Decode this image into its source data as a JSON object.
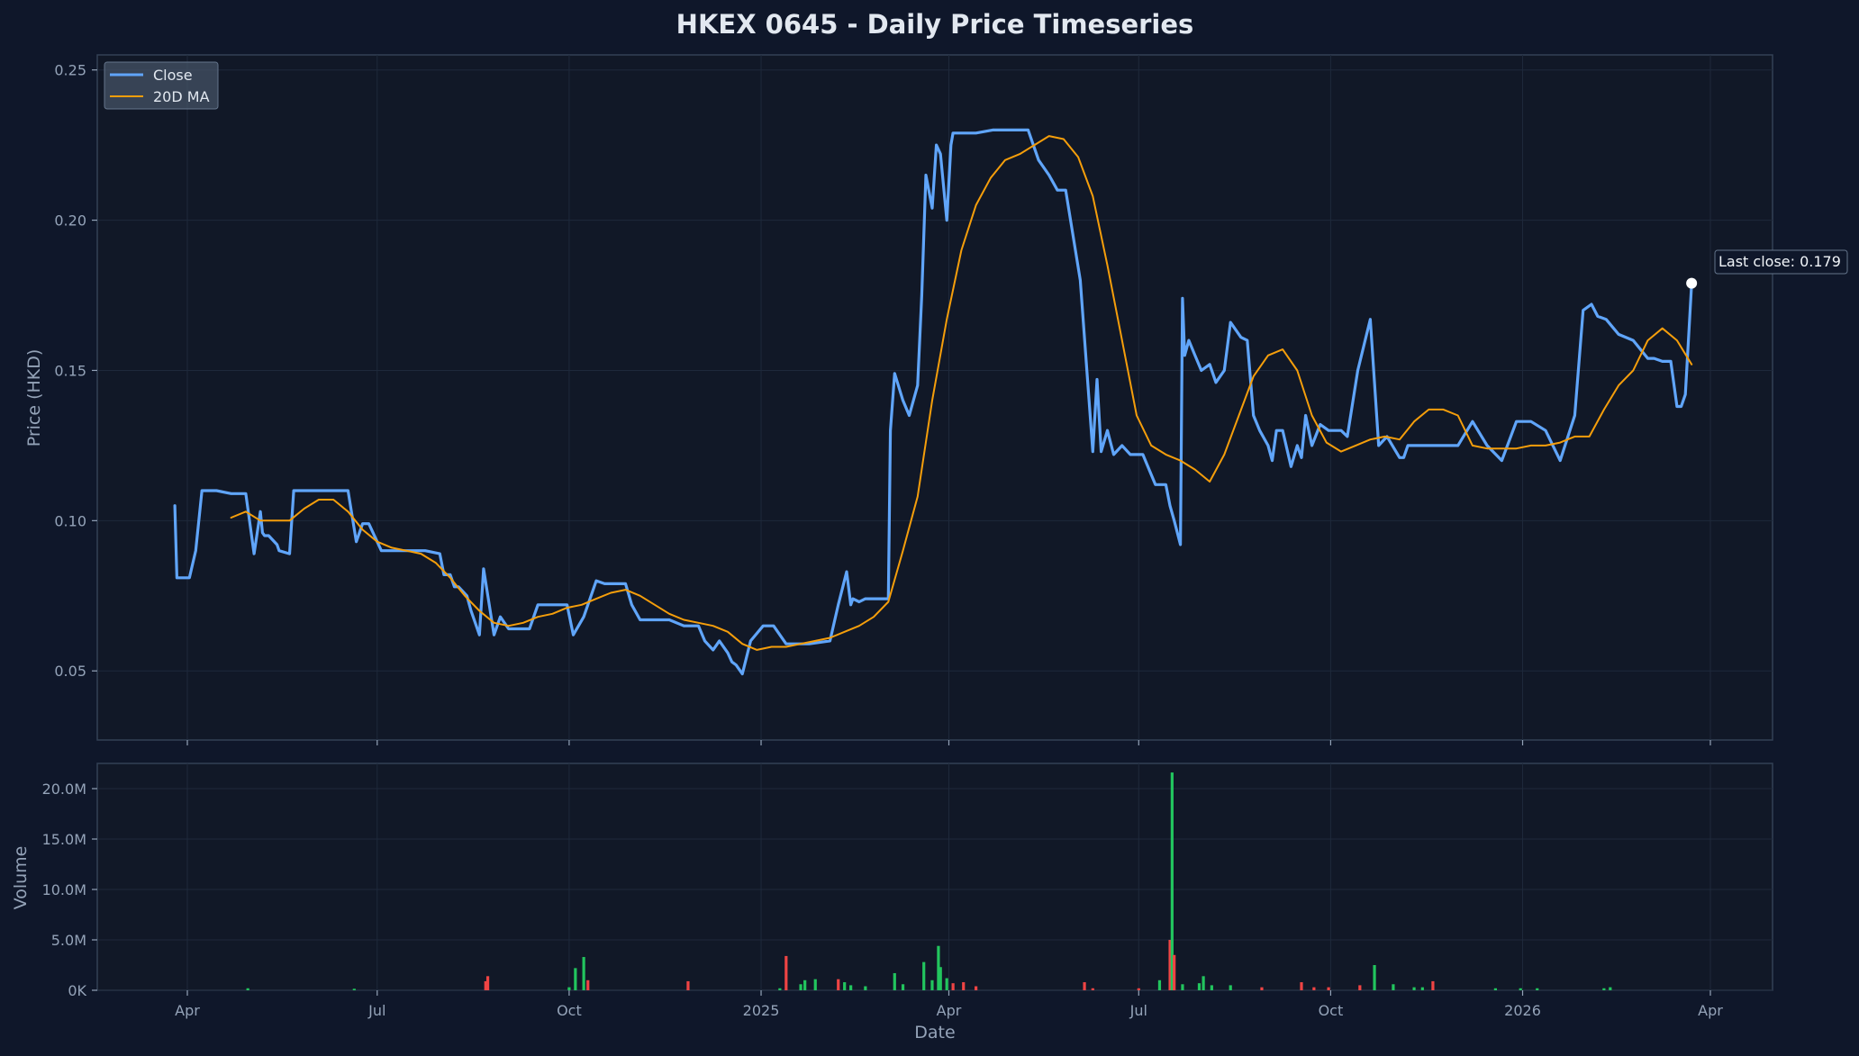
{
  "chart_data": [
    {
      "type": "line",
      "title": "HKEX 0645 - Daily Price Timeseries",
      "ylabel": "Price (HKD)",
      "ylim": [
        0.027,
        0.255
      ],
      "yticks": [
        "0.05",
        "0.10",
        "0.15",
        "0.20",
        "0.25"
      ],
      "grid": true,
      "legend_position": "upper-left",
      "series": [
        {
          "name": "Close",
          "color": "#60a5fa",
          "x": [
            "2024-03-26",
            "2024-03-27",
            "2024-03-28",
            "2024-04-02",
            "2024-04-05",
            "2024-04-08",
            "2024-04-15",
            "2024-04-22",
            "2024-04-29",
            "2024-05-03",
            "2024-05-06",
            "2024-05-07",
            "2024-05-08",
            "2024-05-10",
            "2024-05-14",
            "2024-05-15",
            "2024-05-20",
            "2024-05-22",
            "2024-05-24",
            "2024-05-30",
            "2024-06-05",
            "2024-06-11",
            "2024-06-17",
            "2024-06-21",
            "2024-06-24",
            "2024-06-27",
            "2024-07-03",
            "2024-07-05",
            "2024-07-10",
            "2024-07-17",
            "2024-07-24",
            "2024-07-31",
            "2024-08-02",
            "2024-08-05",
            "2024-08-07",
            "2024-08-09",
            "2024-08-13",
            "2024-08-15",
            "2024-08-19",
            "2024-08-21",
            "2024-08-26",
            "2024-08-29",
            "2024-09-02",
            "2024-09-05",
            "2024-09-09",
            "2024-09-12",
            "2024-09-16",
            "2024-09-23",
            "2024-09-30",
            "2024-10-03",
            "2024-10-08",
            "2024-10-14",
            "2024-10-18",
            "2024-10-24",
            "2024-10-28",
            "2024-10-31",
            "2024-11-04",
            "2024-11-11",
            "2024-11-18",
            "2024-11-25",
            "2024-12-02",
            "2024-12-05",
            "2024-12-09",
            "2024-12-12",
            "2024-12-16",
            "2024-12-18",
            "2024-12-20",
            "2024-12-23",
            "2024-12-27",
            "2025-01-02",
            "2025-01-07",
            "2025-01-13",
            "2025-01-20",
            "2025-01-24",
            "2025-02-03",
            "2025-02-07",
            "2025-02-11",
            "2025-02-13",
            "2025-02-14",
            "2025-02-17",
            "2025-02-20",
            "2025-02-27",
            "2025-03-03",
            "2025-03-04",
            "2025-03-06",
            "2025-03-10",
            "2025-03-13",
            "2025-03-17",
            "2025-03-19",
            "2025-03-21",
            "2025-03-24",
            "2025-03-26",
            "2025-03-28",
            "2025-03-31",
            "2025-04-02",
            "2025-04-03",
            "2025-04-08",
            "2025-04-14",
            "2025-04-22",
            "2025-04-29",
            "2025-05-05",
            "2025-05-09",
            "2025-05-14",
            "2025-05-19",
            "2025-05-23",
            "2025-05-27",
            "2025-06-03",
            "2025-06-09",
            "2025-06-11",
            "2025-06-13",
            "2025-06-16",
            "2025-06-19",
            "2025-06-23",
            "2025-06-27",
            "2025-07-03",
            "2025-07-09",
            "2025-07-14",
            "2025-07-16",
            "2025-07-18",
            "2025-07-21",
            "2025-07-22",
            "2025-07-23",
            "2025-07-25",
            "2025-07-28",
            "2025-07-31",
            "2025-08-04",
            "2025-08-07",
            "2025-08-11",
            "2025-08-14",
            "2025-08-19",
            "2025-08-22",
            "2025-08-25",
            "2025-08-28",
            "2025-09-01",
            "2025-09-03",
            "2025-09-05",
            "2025-09-08",
            "2025-09-12",
            "2025-09-15",
            "2025-09-17",
            "2025-09-19",
            "2025-09-22",
            "2025-09-26",
            "2025-09-30",
            "2025-10-06",
            "2025-10-09",
            "2025-10-14",
            "2025-10-20",
            "2025-10-24",
            "2025-10-28",
            "2025-11-03",
            "2025-11-05",
            "2025-11-07",
            "2025-11-11",
            "2025-11-14",
            "2025-11-18",
            "2025-11-24",
            "2025-12-01",
            "2025-12-08",
            "2025-12-15",
            "2025-12-22",
            "2025-12-29",
            "2026-01-05",
            "2026-01-12",
            "2026-01-19",
            "2026-01-26",
            "2026-01-30",
            "2026-02-03",
            "2026-02-06",
            "2026-02-10",
            "2026-02-16",
            "2026-02-23",
            "2026-03-02",
            "2026-03-05",
            "2026-03-09",
            "2026-03-13",
            "2026-03-16",
            "2026-03-18",
            "2026-03-20",
            "2026-03-23"
          ],
          "y": [
            0.105,
            0.081,
            0.081,
            0.081,
            0.09,
            0.11,
            0.11,
            0.109,
            0.109,
            0.089,
            0.103,
            0.096,
            0.095,
            0.095,
            0.092,
            0.09,
            0.089,
            0.11,
            0.11,
            0.11,
            0.11,
            0.11,
            0.11,
            0.093,
            0.099,
            0.099,
            0.09,
            0.09,
            0.09,
            0.09,
            0.09,
            0.089,
            0.082,
            0.082,
            0.078,
            0.078,
            0.075,
            0.07,
            0.062,
            0.084,
            0.062,
            0.068,
            0.064,
            0.064,
            0.064,
            0.064,
            0.072,
            0.072,
            0.072,
            0.062,
            0.068,
            0.08,
            0.079,
            0.079,
            0.079,
            0.072,
            0.067,
            0.067,
            0.067,
            0.065,
            0.065,
            0.06,
            0.057,
            0.06,
            0.056,
            0.053,
            0.052,
            0.049,
            0.06,
            0.065,
            0.065,
            0.059,
            0.059,
            0.059,
            0.06,
            0.072,
            0.083,
            0.072,
            0.074,
            0.073,
            0.074,
            0.074,
            0.074,
            0.13,
            0.149,
            0.14,
            0.135,
            0.145,
            0.175,
            0.215,
            0.204,
            0.225,
            0.222,
            0.2,
            0.225,
            0.229,
            0.229,
            0.229,
            0.23,
            0.23,
            0.23,
            0.23,
            0.22,
            0.215,
            0.21,
            0.21,
            0.18,
            0.123,
            0.147,
            0.123,
            0.13,
            0.122,
            0.125,
            0.122,
            0.122,
            0.112,
            0.112,
            0.105,
            0.1,
            0.092,
            0.174,
            0.155,
            0.16,
            0.155,
            0.15,
            0.152,
            0.146,
            0.15,
            0.166,
            0.161,
            0.16,
            0.135,
            0.13,
            0.125,
            0.12,
            0.13,
            0.13,
            0.118,
            0.125,
            0.121,
            0.135,
            0.125,
            0.132,
            0.13,
            0.13,
            0.128,
            0.15,
            0.167,
            0.125,
            0.128,
            0.121,
            0.121,
            0.125,
            0.125,
            0.125,
            0.125,
            0.125,
            0.125,
            0.133,
            0.125,
            0.12,
            0.133,
            0.133,
            0.13,
            0.12,
            0.135,
            0.17,
            0.172,
            0.168,
            0.167,
            0.162,
            0.16,
            0.154,
            0.154,
            0.153,
            0.153,
            0.138,
            0.138,
            0.142,
            0.179
          ]
        },
        {
          "name": "20D MA",
          "color": "#f59e0b",
          "x": [
            "2024-04-22",
            "2024-04-29",
            "2024-05-06",
            "2024-05-13",
            "2024-05-20",
            "2024-05-27",
            "2024-06-03",
            "2024-06-10",
            "2024-06-17",
            "2024-06-24",
            "2024-07-01",
            "2024-07-08",
            "2024-07-15",
            "2024-07-22",
            "2024-07-29",
            "2024-08-05",
            "2024-08-12",
            "2024-08-19",
            "2024-08-26",
            "2024-09-02",
            "2024-09-09",
            "2024-09-16",
            "2024-09-23",
            "2024-09-30",
            "2024-10-07",
            "2024-10-14",
            "2024-10-21",
            "2024-10-28",
            "2024-11-04",
            "2024-11-11",
            "2024-11-18",
            "2024-11-25",
            "2024-12-02",
            "2024-12-09",
            "2024-12-16",
            "2024-12-23",
            "2024-12-30",
            "2025-01-06",
            "2025-01-13",
            "2025-01-20",
            "2025-01-27",
            "2025-02-03",
            "2025-02-10",
            "2025-02-17",
            "2025-02-24",
            "2025-03-03",
            "2025-03-10",
            "2025-03-17",
            "2025-03-24",
            "2025-03-31",
            "2025-04-07",
            "2025-04-14",
            "2025-04-21",
            "2025-04-28",
            "2025-05-05",
            "2025-05-12",
            "2025-05-19",
            "2025-05-26",
            "2025-06-02",
            "2025-06-09",
            "2025-06-16",
            "2025-06-23",
            "2025-06-30",
            "2025-07-07",
            "2025-07-14",
            "2025-07-21",
            "2025-07-28",
            "2025-08-04",
            "2025-08-11",
            "2025-08-18",
            "2025-08-25",
            "2025-09-01",
            "2025-09-08",
            "2025-09-15",
            "2025-09-22",
            "2025-09-29",
            "2025-10-06",
            "2025-10-13",
            "2025-10-20",
            "2025-10-27",
            "2025-11-03",
            "2025-11-10",
            "2025-11-17",
            "2025-11-24",
            "2025-12-01",
            "2025-12-08",
            "2025-12-15",
            "2025-12-22",
            "2025-12-29",
            "2026-01-05",
            "2026-01-12",
            "2026-01-19",
            "2026-01-26",
            "2026-02-02",
            "2026-02-09",
            "2026-02-16",
            "2026-02-23",
            "2026-03-02",
            "2026-03-09",
            "2026-03-16",
            "2026-03-23"
          ],
          "y": [
            0.101,
            0.103,
            0.1,
            0.1,
            0.1,
            0.104,
            0.107,
            0.107,
            0.103,
            0.097,
            0.093,
            0.091,
            0.09,
            0.089,
            0.086,
            0.081,
            0.075,
            0.07,
            0.066,
            0.065,
            0.066,
            0.068,
            0.069,
            0.071,
            0.072,
            0.074,
            0.076,
            0.077,
            0.075,
            0.072,
            0.069,
            0.067,
            0.066,
            0.065,
            0.063,
            0.059,
            0.057,
            0.058,
            0.058,
            0.059,
            0.06,
            0.061,
            0.063,
            0.065,
            0.068,
            0.073,
            0.09,
            0.108,
            0.14,
            0.167,
            0.19,
            0.205,
            0.214,
            0.22,
            0.222,
            0.225,
            0.228,
            0.227,
            0.221,
            0.208,
            0.185,
            0.16,
            0.135,
            0.125,
            0.122,
            0.12,
            0.117,
            0.113,
            0.122,
            0.135,
            0.148,
            0.155,
            0.157,
            0.15,
            0.135,
            0.126,
            0.123,
            0.125,
            0.127,
            0.128,
            0.127,
            0.133,
            0.137,
            0.137,
            0.135,
            0.125,
            0.124,
            0.124,
            0.124,
            0.125,
            0.125,
            0.126,
            0.128,
            0.128,
            0.137,
            0.145,
            0.15,
            0.16,
            0.164,
            0.16,
            0.152
          ]
        }
      ],
      "annotation": "Last close: 0.179"
    },
    {
      "type": "bar",
      "ylabel": "Volume",
      "xlabel": "Date",
      "ylim": [
        0,
        22500000
      ],
      "yticks": [
        "0K",
        "5.0M",
        "10.0M",
        "15.0M",
        "20.0M"
      ],
      "xticks": [
        "Apr",
        "Jul",
        "Oct",
        "2025",
        "Apr",
        "Jul",
        "Oct",
        "2026",
        "Apr"
      ],
      "up_color": "#22c55e",
      "down_color": "#ef4444",
      "bars": [
        {
          "x": "2024-04-30",
          "v": 200000,
          "d": "up"
        },
        {
          "x": "2024-06-20",
          "v": 150000,
          "d": "up"
        },
        {
          "x": "2024-08-22",
          "v": 900000,
          "d": "down"
        },
        {
          "x": "2024-08-23",
          "v": 1400000,
          "d": "down"
        },
        {
          "x": "2024-10-01",
          "v": 300000,
          "d": "up"
        },
        {
          "x": "2024-10-04",
          "v": 2200000,
          "d": "up"
        },
        {
          "x": "2024-10-08",
          "v": 3300000,
          "d": "up"
        },
        {
          "x": "2024-10-10",
          "v": 1000000,
          "d": "down"
        },
        {
          "x": "2024-11-27",
          "v": 900000,
          "d": "down"
        },
        {
          "x": "2025-01-10",
          "v": 200000,
          "d": "up"
        },
        {
          "x": "2025-01-13",
          "v": 3400000,
          "d": "down"
        },
        {
          "x": "2025-01-20",
          "v": 600000,
          "d": "up"
        },
        {
          "x": "2025-01-22",
          "v": 1000000,
          "d": "up"
        },
        {
          "x": "2025-01-27",
          "v": 1100000,
          "d": "up"
        },
        {
          "x": "2025-02-07",
          "v": 1100000,
          "d": "down"
        },
        {
          "x": "2025-02-10",
          "v": 800000,
          "d": "up"
        },
        {
          "x": "2025-02-13",
          "v": 500000,
          "d": "up"
        },
        {
          "x": "2025-02-20",
          "v": 400000,
          "d": "up"
        },
        {
          "x": "2025-03-06",
          "v": 1700000,
          "d": "up"
        },
        {
          "x": "2025-03-10",
          "v": 600000,
          "d": "up"
        },
        {
          "x": "2025-03-20",
          "v": 2800000,
          "d": "up"
        },
        {
          "x": "2025-03-24",
          "v": 1000000,
          "d": "up"
        },
        {
          "x": "2025-03-27",
          "v": 4400000,
          "d": "up"
        },
        {
          "x": "2025-03-28",
          "v": 2300000,
          "d": "up"
        },
        {
          "x": "2025-03-31",
          "v": 1200000,
          "d": "up"
        },
        {
          "x": "2025-04-03",
          "v": 700000,
          "d": "down"
        },
        {
          "x": "2025-04-08",
          "v": 800000,
          "d": "down"
        },
        {
          "x": "2025-04-14",
          "v": 400000,
          "d": "down"
        },
        {
          "x": "2025-06-05",
          "v": 800000,
          "d": "down"
        },
        {
          "x": "2025-06-09",
          "v": 200000,
          "d": "down"
        },
        {
          "x": "2025-07-01",
          "v": 200000,
          "d": "down"
        },
        {
          "x": "2025-07-11",
          "v": 1000000,
          "d": "up"
        },
        {
          "x": "2025-07-16",
          "v": 5000000,
          "d": "down"
        },
        {
          "x": "2025-07-17",
          "v": 21600000,
          "d": "up"
        },
        {
          "x": "2025-07-18",
          "v": 3500000,
          "d": "down"
        },
        {
          "x": "2025-07-22",
          "v": 600000,
          "d": "up"
        },
        {
          "x": "2025-07-30",
          "v": 700000,
          "d": "up"
        },
        {
          "x": "2025-08-01",
          "v": 1400000,
          "d": "up"
        },
        {
          "x": "2025-08-05",
          "v": 500000,
          "d": "up"
        },
        {
          "x": "2025-08-14",
          "v": 500000,
          "d": "up"
        },
        {
          "x": "2025-08-29",
          "v": 300000,
          "d": "down"
        },
        {
          "x": "2025-09-17",
          "v": 800000,
          "d": "down"
        },
        {
          "x": "2025-09-23",
          "v": 300000,
          "d": "down"
        },
        {
          "x": "2025-09-30",
          "v": 300000,
          "d": "down"
        },
        {
          "x": "2025-10-15",
          "v": 500000,
          "d": "down"
        },
        {
          "x": "2025-10-22",
          "v": 2500000,
          "d": "up"
        },
        {
          "x": "2025-10-31",
          "v": 600000,
          "d": "up"
        },
        {
          "x": "2025-11-10",
          "v": 300000,
          "d": "up"
        },
        {
          "x": "2025-11-14",
          "v": 300000,
          "d": "up"
        },
        {
          "x": "2025-11-19",
          "v": 900000,
          "d": "down"
        },
        {
          "x": "2025-12-19",
          "v": 200000,
          "d": "up"
        },
        {
          "x": "2025-12-31",
          "v": 200000,
          "d": "up"
        },
        {
          "x": "2026-01-08",
          "v": 200000,
          "d": "up"
        },
        {
          "x": "2026-02-09",
          "v": 200000,
          "d": "up"
        },
        {
          "x": "2026-02-12",
          "v": 300000,
          "d": "up"
        }
      ]
    }
  ]
}
